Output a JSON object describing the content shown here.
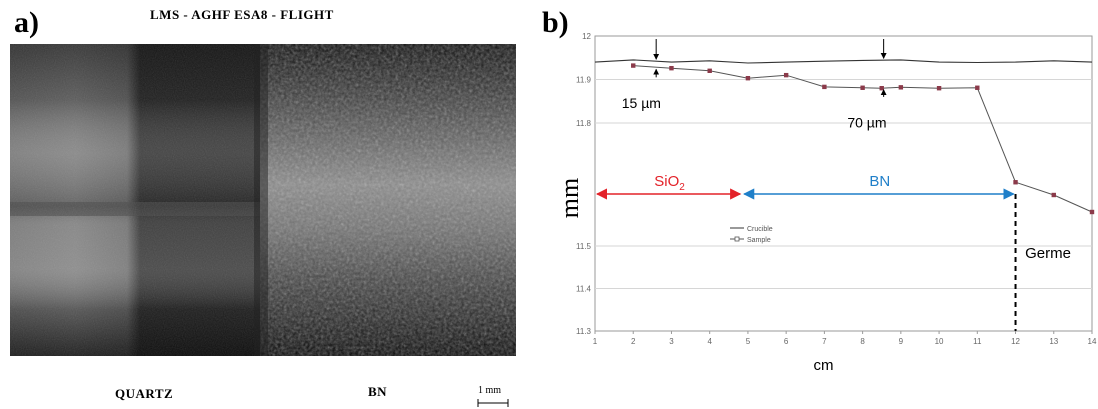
{
  "panel_a": {
    "label": "a)",
    "header": "LMS  -  AGHF ESA8  -  FLIGHT",
    "left_label": "QUARTZ",
    "right_label": "BN",
    "scale_label": "1 mm"
  },
  "panel_b": {
    "label": "b)"
  },
  "chart_data": {
    "type": "line",
    "xlabel": "cm",
    "ylabel": "mm",
    "xlim": [
      1,
      14
    ],
    "ylim": [
      11.3,
      12.0
    ],
    "x_ticks": [
      "1",
      "2",
      "3",
      "4",
      "5",
      "6",
      "7",
      "8",
      "9",
      "10",
      "11",
      "12",
      "13",
      "14"
    ],
    "y_ticks": [
      "11.3",
      "11.4",
      "11.5",
      "11.8",
      "11.9",
      "12"
    ],
    "series": [
      {
        "name": "Crucible",
        "x": [
          1,
          2,
          3,
          4,
          5,
          6,
          7,
          8,
          9,
          10,
          11,
          12,
          13,
          14
        ],
        "y": [
          11.94,
          11.945,
          11.94,
          11.943,
          11.938,
          11.94,
          11.942,
          11.944,
          11.945,
          11.94,
          11.939,
          11.94,
          11.943,
          11.94
        ]
      },
      {
        "name": "Sample",
        "x": [
          2,
          3,
          4,
          5,
          6,
          7,
          8,
          8.5,
          9,
          10,
          11,
          12,
          13,
          14
        ],
        "y": [
          11.932,
          11.926,
          11.92,
          11.903,
          11.91,
          11.883,
          11.881,
          11.88,
          11.882,
          11.88,
          11.881,
          11.65,
          11.62,
          11.58
        ]
      }
    ],
    "legend": {
      "placement": "middle-left",
      "entries": [
        "Crucible",
        "Sample"
      ]
    },
    "annotations": {
      "gap_left": "15 µm",
      "gap_right": "70 µm",
      "region_sio2": "SiO",
      "region_sio2_sub": "2",
      "region_bn": "BN",
      "germe": "Germe"
    },
    "colors": {
      "sio2": "#e32229",
      "bn": "#1f7fc9",
      "marker": "#8b3a4a"
    }
  }
}
